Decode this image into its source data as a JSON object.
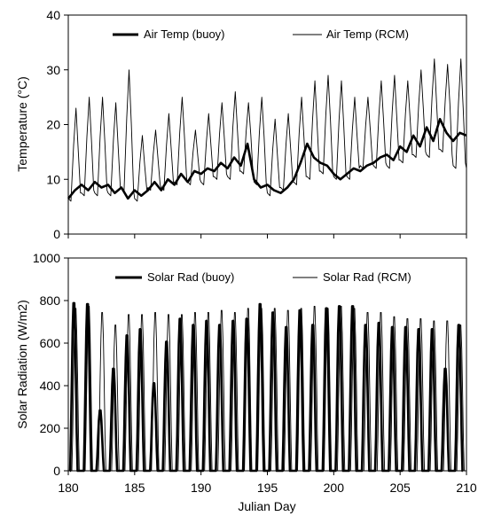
{
  "chart_data": [
    {
      "type": "line",
      "xlabel": "",
      "ylabel": "Temperature (°C)",
      "xlim": [
        180,
        210
      ],
      "ylim": [
        0,
        40
      ],
      "xticks": [
        180,
        185,
        190,
        195,
        200,
        205,
        210
      ],
      "yticks": [
        0,
        10,
        20,
        30,
        40
      ],
      "grid": false,
      "legend": "top",
      "series": [
        {
          "name": "Air Temp (buoy)",
          "style": "thick",
          "color": "#000000",
          "x": [
            180.0,
            180.5,
            181.0,
            181.5,
            182.0,
            182.5,
            183.0,
            183.5,
            184.0,
            184.5,
            185.0,
            185.5,
            186.0,
            186.5,
            187.0,
            187.5,
            188.0,
            188.5,
            189.0,
            189.5,
            190.0,
            190.5,
            191.0,
            191.5,
            192.0,
            192.5,
            193.0,
            193.5,
            194.0,
            194.5,
            195.0,
            195.5,
            196.0,
            196.5,
            197.0,
            197.5,
            198.0,
            198.5,
            199.0,
            199.5,
            200.0,
            200.5,
            201.0,
            201.5,
            202.0,
            202.5,
            203.0,
            203.5,
            204.0,
            204.5,
            205.0,
            205.5,
            206.0,
            206.5,
            207.0,
            207.5,
            208.0,
            208.5,
            209.0,
            209.5,
            210.0
          ],
          "values": [
            6.5,
            8.0,
            9.0,
            8.0,
            9.5,
            8.5,
            9.0,
            7.5,
            8.5,
            6.5,
            8.0,
            7.0,
            8.0,
            9.5,
            8.0,
            10.0,
            9.0,
            11.0,
            9.5,
            11.5,
            11.0,
            12.0,
            11.5,
            13.0,
            12.0,
            14.0,
            12.5,
            16.5,
            10.0,
            8.5,
            9.0,
            8.0,
            7.5,
            8.5,
            10.0,
            13.0,
            16.5,
            14.0,
            13.0,
            12.5,
            11.0,
            10.0,
            11.0,
            12.0,
            11.5,
            12.5,
            13.0,
            14.0,
            14.5,
            13.5,
            16.0,
            15.0,
            18.0,
            16.0,
            19.5,
            17.0,
            21.0,
            18.5,
            17.0,
            18.5,
            18.0
          ]
        },
        {
          "name": "Air Temp (RCM)",
          "style": "thin",
          "color": "#000000",
          "day_start": 180,
          "day_end": 210,
          "cycle_peak_hour_fraction": 0.58,
          "daily_min": [
            6,
            7,
            7,
            7,
            8,
            6,
            8,
            8,
            9,
            9,
            9,
            10,
            10,
            11,
            9,
            7,
            8,
            9,
            10,
            11,
            10,
            10,
            12,
            12,
            12,
            13,
            14,
            14,
            15,
            12
          ],
          "daily_max": [
            23,
            25,
            25,
            24,
            30,
            18,
            19,
            22,
            25,
            19,
            22,
            24,
            26,
            24,
            25,
            21,
            22,
            25,
            28,
            29,
            28,
            25,
            25,
            28,
            29,
            28,
            30,
            32,
            31,
            32
          ]
        }
      ]
    },
    {
      "type": "line",
      "xlabel": "Julian Day",
      "ylabel": "Solar Radiation (W/m2)",
      "xlim": [
        180,
        210
      ],
      "ylim": [
        0,
        1000
      ],
      "xticks": [
        180,
        185,
        190,
        195,
        200,
        205,
        210
      ],
      "yticks": [
        0,
        200,
        400,
        600,
        800,
        1000
      ],
      "grid": false,
      "legend": "top",
      "series": [
        {
          "name": "Solar Rad (buoy)",
          "style": "thick",
          "color": "#000000",
          "day_start": 180,
          "daily_peak": [
            805,
            800,
            290,
            490,
            650,
            680,
            420,
            620,
            730,
            700,
            720,
            700,
            720,
            730,
            800,
            760,
            690,
            770,
            700,
            780,
            790,
            790,
            700,
            710,
            690,
            690,
            680,
            680,
            490,
            700
          ],
          "daily_peak_offset": [
            0.42,
            0.45,
            0.4,
            0.4,
            0.42,
            0.42,
            0.45,
            0.4,
            0.42,
            0.42,
            0.42,
            0.4,
            0.42,
            0.45,
            0.45,
            0.42,
            0.42,
            0.45,
            0.42,
            0.45,
            0.42,
            0.42,
            0.4,
            0.4,
            0.42,
            0.42,
            0.4,
            0.42,
            0.4,
            0.42
          ]
        },
        {
          "name": "Solar Rad (RCM)",
          "style": "thin",
          "color": "#000000",
          "day_start": 180,
          "daily_peak": [
            780,
            790,
            760,
            700,
            750,
            750,
            760,
            750,
            750,
            760,
            760,
            770,
            760,
            780,
            780,
            780,
            770,
            780,
            790,
            780,
            790,
            780,
            760,
            760,
            740,
            730,
            730,
            720,
            720,
            700
          ],
          "daily_peak_offset": [
            0.55,
            0.55,
            0.55,
            0.55,
            0.55,
            0.55,
            0.55,
            0.55,
            0.55,
            0.55,
            0.55,
            0.55,
            0.55,
            0.55,
            0.55,
            0.55,
            0.55,
            0.55,
            0.55,
            0.55,
            0.55,
            0.55,
            0.55,
            0.55,
            0.55,
            0.55,
            0.55,
            0.55,
            0.55,
            0.55
          ]
        }
      ]
    }
  ]
}
